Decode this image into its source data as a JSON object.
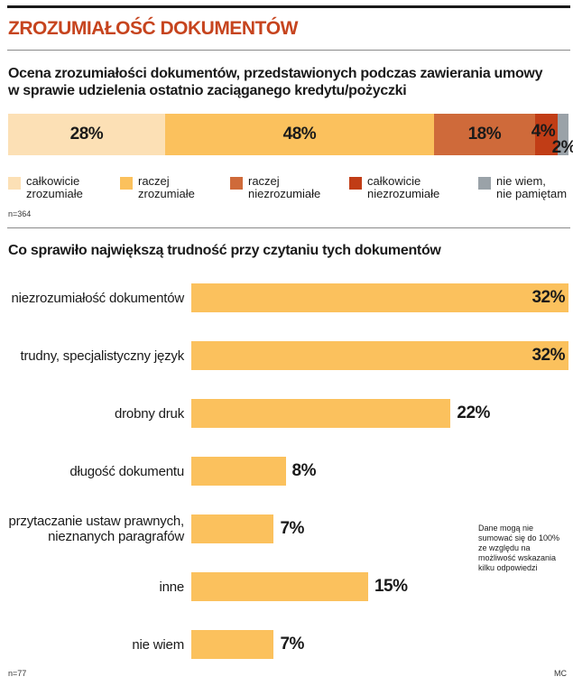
{
  "title": "ZROZUMIAŁOŚĆ DOKUMENTÓW",
  "colors": {
    "title": "#c6441e",
    "fully_understandable": "#fce0b5",
    "rather_understandable": "#fbc15d",
    "rather_not_understandable": "#cf6a3a",
    "fully_not_understandable": "#c13d16",
    "dont_know": "#9aa2a8"
  },
  "chart_data": [
    {
      "type": "bar",
      "orientation": "horizontal-stacked",
      "title": "Ocena zrozumiałości dokumentów, przedstawionych podczas zawierania umowy w sprawie udzielenia ostatnio zaciąganego kredytu/pożyczki",
      "title_lines": [
        "Ocena zrozumiałości dokumentów, przedstawionych podczas zawierania umowy",
        "w sprawie udzielenia ostatnio zaciąganego kredytu/pożyczki"
      ],
      "series": [
        {
          "name": "całkowicie zrozumiałe",
          "legend_lines": [
            "całkowicie",
            "zrozumiałe"
          ],
          "value": 28,
          "label": "28%",
          "color_key": "fully_understandable"
        },
        {
          "name": "raczej zrozumiałe",
          "legend_lines": [
            "raczej",
            "zrozumiałe"
          ],
          "value": 48,
          "label": "48%",
          "color_key": "rather_understandable"
        },
        {
          "name": "raczej niezrozumiałe",
          "legend_lines": [
            "raczej",
            "niezrozumiałe"
          ],
          "value": 18,
          "label": "18%",
          "color_key": "rather_not_understandable"
        },
        {
          "name": "całkowicie niezrozumiałe",
          "legend_lines": [
            "całkowicie",
            "niezrozumiałe"
          ],
          "value": 4,
          "label": "4%",
          "color_key": "fully_not_understandable"
        },
        {
          "name": "nie wiem, nie pamiętam",
          "legend_lines": [
            "nie wiem,",
            "nie pamiętam"
          ],
          "value": 2,
          "label": "2%",
          "color_key": "dont_know"
        }
      ],
      "sample": "n=364"
    },
    {
      "type": "bar",
      "orientation": "horizontal",
      "title": "Co sprawiło największą trudność przy czytaniu tych dokumentów",
      "categories": [
        "niezrozumiałość dokumentów",
        "trudny, specjalistyczny język",
        "drobny druk",
        "długość dokumentu",
        "przytaczanie ustaw prawnych, nieznanych paragrafów",
        "inne",
        "nie wiem"
      ],
      "category_lines": [
        [
          "niezrozumiałość dokumentów"
        ],
        [
          "trudny, specjalistyczny język"
        ],
        [
          "drobny druk"
        ],
        [
          "długość dokumentu"
        ],
        [
          "przytaczanie ustaw prawnych,",
          "nieznanych paragrafów"
        ],
        [
          "inne"
        ],
        [
          "nie wiem"
        ]
      ],
      "values": [
        32,
        32,
        22,
        8,
        7,
        15,
        7
      ],
      "labels": [
        "32%",
        "32%",
        "22%",
        "8%",
        "7%",
        "15%",
        "7%"
      ],
      "bar_color_key": "rather_understandable",
      "xlim": [
        0,
        32
      ],
      "sample": "n=77",
      "note": "Dane mogą nie sumować się do 100% ze względu na możliwość wskazania kilku odpowiedzi"
    }
  ],
  "credit": "MC"
}
